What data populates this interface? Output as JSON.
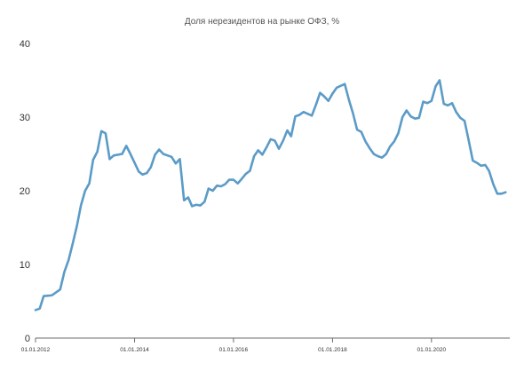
{
  "chart_data": {
    "type": "line",
    "title": "Доля нерезидентов на рынке ОФЗ, %",
    "xlabel": "",
    "ylabel": "",
    "ylim": [
      0,
      40
    ],
    "yticks": [
      "0",
      "10",
      "20",
      "30",
      "40"
    ],
    "xticks": [
      "01.01.2012",
      "01.01.2014",
      "01.01.2016",
      "01.01.2018",
      "01.01.2020"
    ],
    "xlim": [
      "2012-01-01",
      "2021-08-01"
    ],
    "grid": false,
    "line_color": "#5b9bc7",
    "series": [
      {
        "points": [
          [
            "2012-01-01",
            3.8
          ],
          [
            "2012-02-01",
            4.0
          ],
          [
            "2012-03-01",
            5.7
          ],
          [
            "2012-05-01",
            5.8
          ],
          [
            "2012-07-01",
            6.6
          ],
          [
            "2012-08-01",
            9.0
          ],
          [
            "2012-09-01",
            10.6
          ],
          [
            "2012-10-01",
            12.8
          ],
          [
            "2012-11-01",
            15.2
          ],
          [
            "2012-12-01",
            18.0
          ],
          [
            "2013-01-01",
            20.0
          ],
          [
            "2013-02-01",
            21.0
          ],
          [
            "2013-03-01",
            24.2
          ],
          [
            "2013-04-01",
            25.3
          ],
          [
            "2013-05-01",
            28.1
          ],
          [
            "2013-06-01",
            27.8
          ],
          [
            "2013-07-01",
            24.3
          ],
          [
            "2013-08-01",
            24.8
          ],
          [
            "2013-10-01",
            25.0
          ],
          [
            "2013-11-01",
            26.1
          ],
          [
            "2013-12-01",
            25.0
          ],
          [
            "2014-01-01",
            23.8
          ],
          [
            "2014-02-01",
            22.6
          ],
          [
            "2014-03-01",
            22.2
          ],
          [
            "2014-04-01",
            22.4
          ],
          [
            "2014-05-01",
            23.2
          ],
          [
            "2014-06-01",
            24.9
          ],
          [
            "2014-07-01",
            25.6
          ],
          [
            "2014-08-01",
            25.0
          ],
          [
            "2014-10-01",
            24.6
          ],
          [
            "2014-11-01",
            23.7
          ],
          [
            "2014-12-01",
            24.3
          ],
          [
            "2015-01-01",
            18.7
          ],
          [
            "2015-02-01",
            19.1
          ],
          [
            "2015-03-01",
            17.9
          ],
          [
            "2015-04-01",
            18.1
          ],
          [
            "2015-05-01",
            18.0
          ],
          [
            "2015-06-01",
            18.5
          ],
          [
            "2015-07-01",
            20.3
          ],
          [
            "2015-08-01",
            20.0
          ],
          [
            "2015-09-01",
            20.7
          ],
          [
            "2015-10-01",
            20.6
          ],
          [
            "2015-11-01",
            20.9
          ],
          [
            "2015-12-01",
            21.5
          ],
          [
            "2016-01-01",
            21.5
          ],
          [
            "2016-02-01",
            21.0
          ],
          [
            "2016-03-01",
            21.6
          ],
          [
            "2016-04-01",
            22.3
          ],
          [
            "2016-05-01",
            22.7
          ],
          [
            "2016-06-01",
            24.7
          ],
          [
            "2016-07-01",
            25.5
          ],
          [
            "2016-08-01",
            24.9
          ],
          [
            "2016-09-01",
            25.9
          ],
          [
            "2016-10-01",
            27.0
          ],
          [
            "2016-11-01",
            26.8
          ],
          [
            "2016-12-01",
            25.7
          ],
          [
            "2017-01-01",
            26.8
          ],
          [
            "2017-02-01",
            28.2
          ],
          [
            "2017-03-01",
            27.4
          ],
          [
            "2017-04-01",
            30.1
          ],
          [
            "2017-05-01",
            30.3
          ],
          [
            "2017-06-01",
            30.7
          ],
          [
            "2017-08-01",
            30.2
          ],
          [
            "2017-09-01",
            31.7
          ],
          [
            "2017-10-01",
            33.3
          ],
          [
            "2017-11-01",
            32.8
          ],
          [
            "2017-12-01",
            32.2
          ],
          [
            "2018-01-01",
            33.2
          ],
          [
            "2018-02-01",
            34.0
          ],
          [
            "2018-04-01",
            34.5
          ],
          [
            "2018-05-01",
            32.4
          ],
          [
            "2018-06-01",
            30.5
          ],
          [
            "2018-07-01",
            28.3
          ],
          [
            "2018-08-01",
            28.0
          ],
          [
            "2018-09-01",
            26.7
          ],
          [
            "2018-10-01",
            25.8
          ],
          [
            "2018-11-01",
            25.0
          ],
          [
            "2018-12-01",
            24.7
          ],
          [
            "2019-01-01",
            24.5
          ],
          [
            "2019-02-01",
            25.0
          ],
          [
            "2019-03-01",
            26.0
          ],
          [
            "2019-04-01",
            26.7
          ],
          [
            "2019-05-01",
            27.8
          ],
          [
            "2019-06-01",
            30.0
          ],
          [
            "2019-07-01",
            30.9
          ],
          [
            "2019-08-01",
            30.1
          ],
          [
            "2019-09-01",
            29.8
          ],
          [
            "2019-10-01",
            29.9
          ],
          [
            "2019-11-01",
            32.1
          ],
          [
            "2019-12-01",
            31.9
          ],
          [
            "2020-01-01",
            32.2
          ],
          [
            "2020-02-01",
            34.2
          ],
          [
            "2020-03-01",
            35.0
          ],
          [
            "2020-04-01",
            31.8
          ],
          [
            "2020-05-01",
            31.6
          ],
          [
            "2020-06-01",
            31.9
          ],
          [
            "2020-07-01",
            30.7
          ],
          [
            "2020-08-01",
            29.9
          ],
          [
            "2020-09-01",
            29.5
          ],
          [
            "2020-10-01",
            26.9
          ],
          [
            "2020-11-01",
            24.1
          ],
          [
            "2020-12-01",
            23.8
          ],
          [
            "2021-01-01",
            23.4
          ],
          [
            "2021-02-01",
            23.5
          ],
          [
            "2021-03-01",
            22.7
          ],
          [
            "2021-04-01",
            20.9
          ],
          [
            "2021-05-01",
            19.6
          ],
          [
            "2021-06-01",
            19.6
          ],
          [
            "2021-07-01",
            19.8
          ]
        ]
      }
    ]
  }
}
